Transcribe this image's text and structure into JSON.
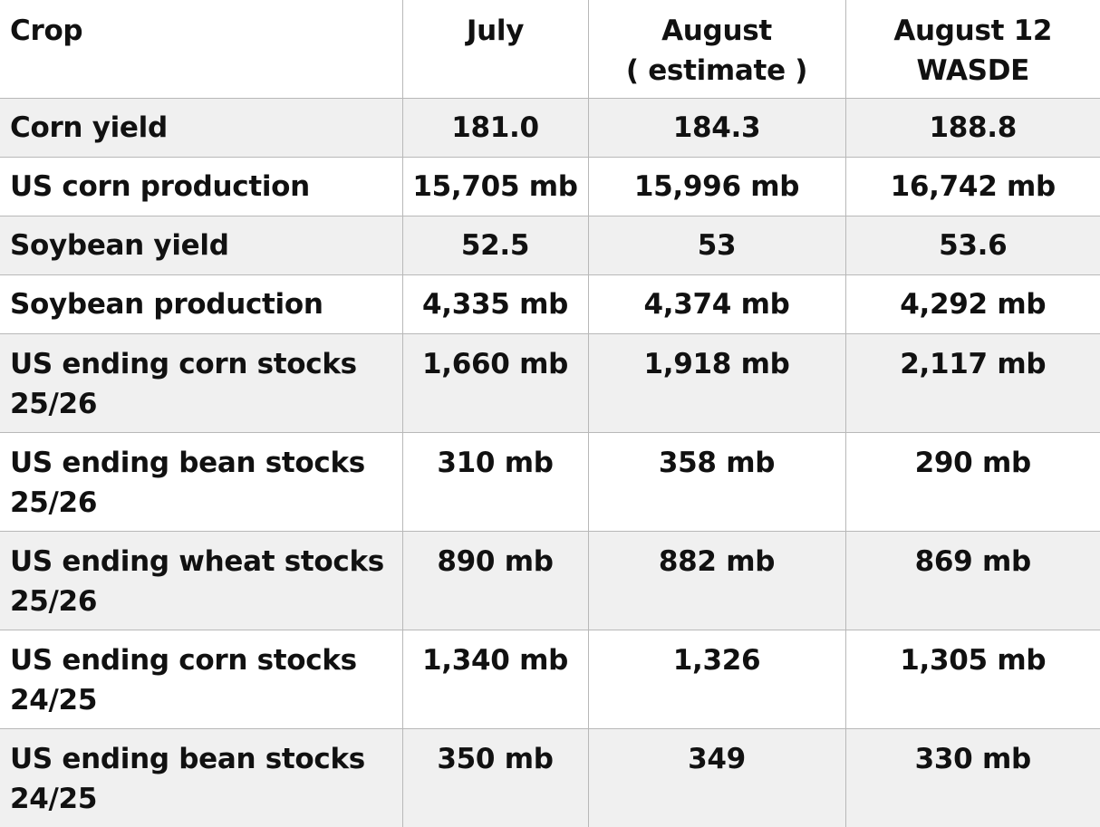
{
  "table": {
    "headers": [
      [
        "Crop"
      ],
      [
        "July"
      ],
      [
        "August",
        "( estimate )"
      ],
      [
        "August 12",
        "WASDE"
      ]
    ],
    "rows": [
      {
        "crop": [
          "Corn yield"
        ],
        "july": "181.0",
        "august_estimate": "184.3",
        "august12_wasde": "188.8"
      },
      {
        "crop": [
          "US corn production"
        ],
        "july": "15,705 mb",
        "august_estimate": "15,996 mb",
        "august12_wasde": "16,742 mb"
      },
      {
        "crop": [
          "Soybean yield"
        ],
        "july": "52.5",
        "august_estimate": "53",
        "august12_wasde": "53.6"
      },
      {
        "crop": [
          "Soybean production"
        ],
        "july": "4,335 mb",
        "august_estimate": "4,374 mb",
        "august12_wasde": "4,292 mb"
      },
      {
        "crop": [
          "US ending corn stocks",
          "25/26"
        ],
        "july": "1,660 mb",
        "august_estimate": "1,918 mb",
        "august12_wasde": "2,117 mb"
      },
      {
        "crop": [
          "US ending bean stocks",
          "25/26"
        ],
        "july": "310 mb",
        "august_estimate": "358 mb",
        "august12_wasde": "290 mb"
      },
      {
        "crop": [
          "US ending wheat stocks",
          "25/26"
        ],
        "july": "890 mb",
        "august_estimate": "882 mb",
        "august12_wasde": "869 mb"
      },
      {
        "crop": [
          "US ending corn stocks",
          "24/25"
        ],
        "july": "1,340 mb",
        "august_estimate": "1,326",
        "august12_wasde": "1,305 mb"
      },
      {
        "crop": [
          "US ending bean stocks",
          "24/25"
        ],
        "july": "350 mb",
        "august_estimate": "349",
        "august12_wasde": "330 mb"
      }
    ]
  }
}
